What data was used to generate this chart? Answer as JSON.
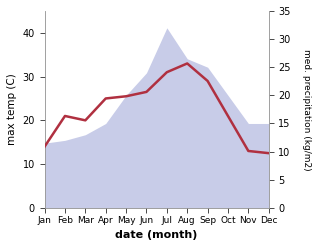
{
  "months": [
    "Jan",
    "Feb",
    "Mar",
    "Apr",
    "May",
    "Jun",
    "Jul",
    "Aug",
    "Sep",
    "Oct",
    "Nov",
    "Dec"
  ],
  "max_temp": [
    14.0,
    21.0,
    20.0,
    25.0,
    25.5,
    26.5,
    31.0,
    33.0,
    29.0,
    21.0,
    13.0,
    12.5
  ],
  "precipitation": [
    11.5,
    12.0,
    13.0,
    15.0,
    20.0,
    24.0,
    32.0,
    26.5,
    25.0,
    20.0,
    15.0,
    15.0
  ],
  "temp_color": "#b03040",
  "precip_fill_color": "#c8cce8",
  "temp_ylim": [
    0,
    45
  ],
  "precip_ylim": [
    0,
    35
  ],
  "temp_yticks": [
    0,
    10,
    20,
    30,
    40
  ],
  "precip_yticks": [
    0,
    5,
    10,
    15,
    20,
    25,
    30,
    35
  ],
  "xlabel": "date (month)",
  "ylabel_left": "max temp (C)",
  "ylabel_right": "med. precipitation (kg/m2)",
  "bg_color": "#ffffff"
}
